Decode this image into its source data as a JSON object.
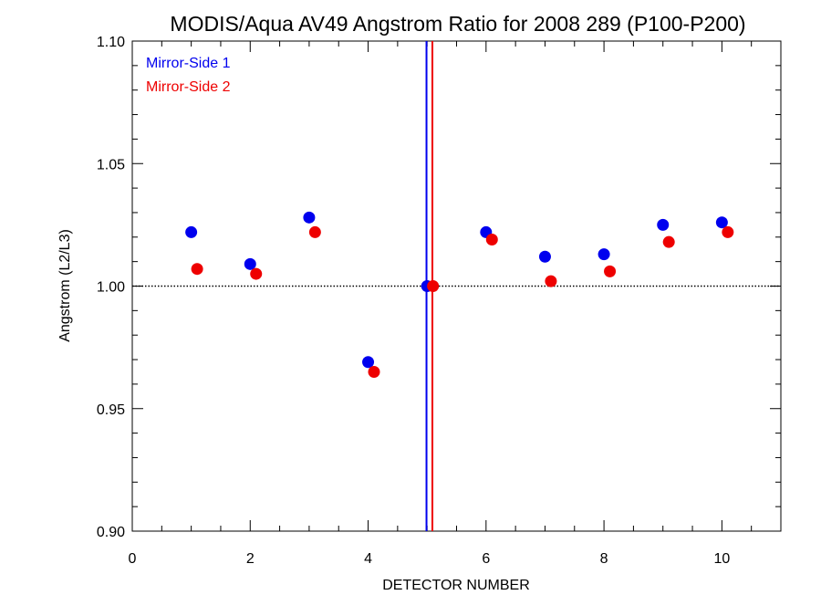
{
  "chart_data": {
    "type": "scatter",
    "title": "MODIS/Aqua AV49 Angstrom Ratio for 2008 289 (P100-P200)",
    "xlabel": "DETECTOR NUMBER",
    "ylabel": "Angstrom (L2/L3)",
    "xlim": [
      0,
      11
    ],
    "ylim": [
      0.9,
      1.1
    ],
    "x_ticks": [
      0,
      2,
      4,
      6,
      8,
      10
    ],
    "x_tick_labels": [
      "0",
      "2",
      "4",
      "6",
      "8",
      "10"
    ],
    "y_ticks": [
      0.9,
      0.95,
      1.0,
      1.05,
      1.1
    ],
    "y_tick_labels": [
      "0.90",
      "0.95",
      "1.00",
      "1.05",
      "1.10"
    ],
    "reference_hline": 1.0,
    "legend_position": "top-left",
    "series": [
      {
        "name": "Mirror-Side 1",
        "color": "#0000ee",
        "x": [
          1,
          2,
          3,
          4,
          5,
          6,
          7,
          8,
          9,
          10
        ],
        "y": [
          1.022,
          1.009,
          1.028,
          0.969,
          1.0,
          1.022,
          1.012,
          1.013,
          1.025,
          1.026
        ],
        "vline": 4.99
      },
      {
        "name": "Mirror-Side 2",
        "color": "#ee0000",
        "x": [
          1.1,
          2.1,
          3.1,
          4.1,
          5.1,
          6.1,
          7.1,
          8.1,
          9.1,
          10.1
        ],
        "y": [
          1.007,
          1.005,
          1.022,
          0.965,
          1.0,
          1.019,
          1.002,
          1.006,
          1.018,
          1.022
        ],
        "vline": 5.09
      }
    ]
  }
}
